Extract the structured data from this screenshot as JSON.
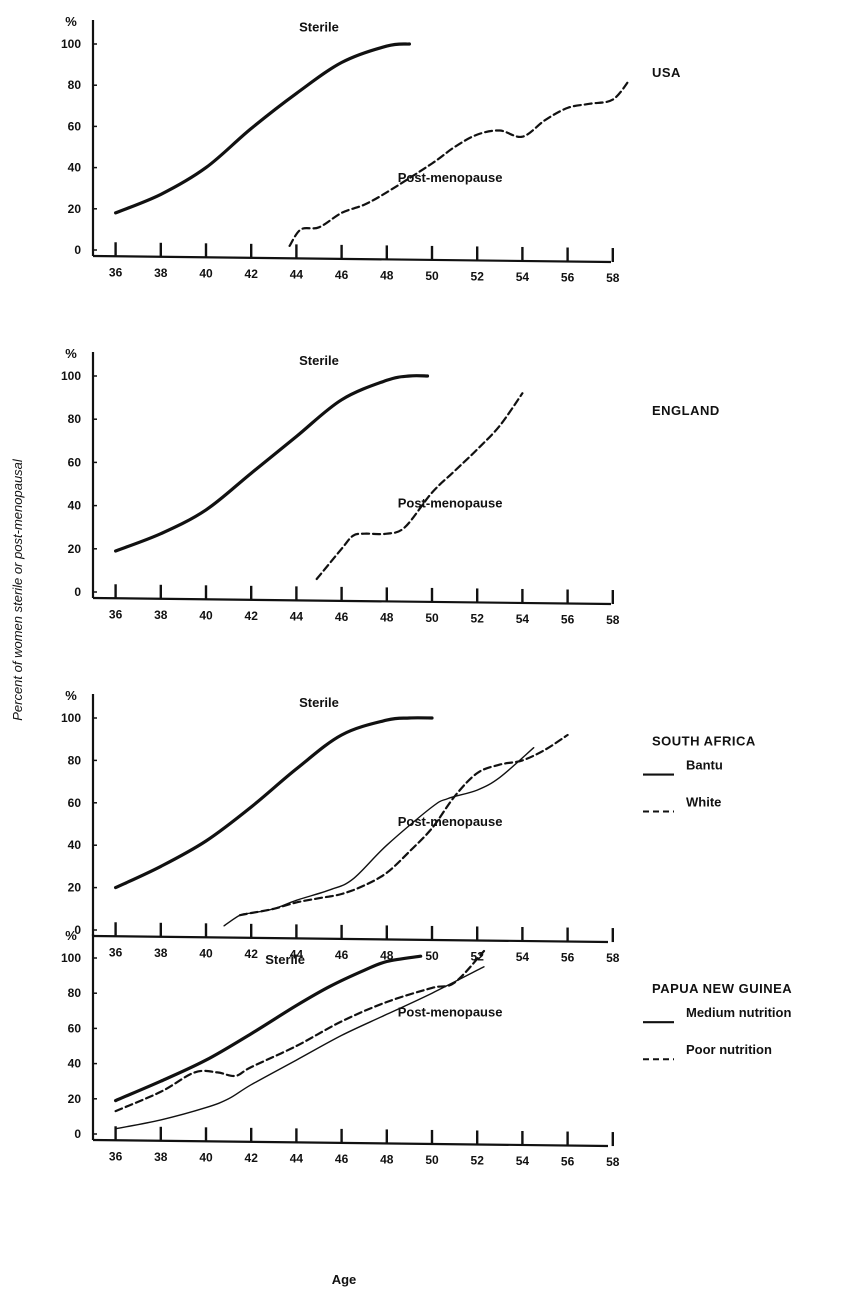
{
  "figure": {
    "ylabel": "Percent of women sterile or post-menopausal",
    "xlabel": "Age"
  },
  "chart_data": [
    {
      "type": "line",
      "title": "USA",
      "ylabel": "%",
      "xlim": [
        35,
        59
      ],
      "ylim": [
        0,
        100
      ],
      "x_ticks": [
        36,
        38,
        40,
        42,
        44,
        46,
        48,
        50,
        52,
        54,
        56,
        58
      ],
      "y_ticks": [
        0,
        20,
        40,
        60,
        80,
        100
      ],
      "series": [
        {
          "name": "Sterile",
          "style": "thick",
          "points": [
            [
              36,
              18
            ],
            [
              38,
              27
            ],
            [
              40,
              40
            ],
            [
              42,
              59
            ],
            [
              44,
              76
            ],
            [
              46,
              91
            ],
            [
              48,
              99
            ],
            [
              49,
              100
            ]
          ]
        },
        {
          "name": "Post-menopause",
          "style": "dashed",
          "points": [
            [
              43.7,
              2
            ],
            [
              44.2,
              10
            ],
            [
              45,
              11
            ],
            [
              46,
              18
            ],
            [
              47,
              22
            ],
            [
              48,
              28
            ],
            [
              50,
              42
            ],
            [
              51,
              50
            ],
            [
              52,
              56
            ],
            [
              53,
              58
            ],
            [
              54,
              55
            ],
            [
              55,
              63
            ],
            [
              56,
              69
            ],
            [
              57,
              71
            ],
            [
              58,
              73
            ],
            [
              58.7,
              82
            ]
          ]
        }
      ],
      "annotations": [
        {
          "text": "Sterile",
          "x": 45,
          "y": 108
        },
        {
          "text": "Post-menopause",
          "x": 50.8,
          "y": 35
        }
      ],
      "legend": []
    },
    {
      "type": "line",
      "title": "ENGLAND",
      "ylabel": "%",
      "xlim": [
        35,
        59
      ],
      "ylim": [
        0,
        100
      ],
      "x_ticks": [
        36,
        38,
        40,
        42,
        44,
        46,
        48,
        50,
        52,
        54,
        56,
        58
      ],
      "y_ticks": [
        0,
        20,
        40,
        60,
        80,
        100
      ],
      "series": [
        {
          "name": "Sterile",
          "style": "thick",
          "points": [
            [
              36,
              19
            ],
            [
              38,
              27
            ],
            [
              40,
              38
            ],
            [
              42,
              55
            ],
            [
              44,
              72
            ],
            [
              46,
              89
            ],
            [
              48,
              98
            ],
            [
              49,
              100
            ],
            [
              49.8,
              100
            ]
          ]
        },
        {
          "name": "Post-menopause",
          "style": "dashed",
          "points": [
            [
              44.9,
              6
            ],
            [
              46,
              20
            ],
            [
              46.5,
              26
            ],
            [
              47,
              27
            ],
            [
              48,
              27
            ],
            [
              48.8,
              30
            ],
            [
              50,
              46
            ],
            [
              51,
              56
            ],
            [
              52,
              66
            ],
            [
              53,
              77
            ],
            [
              54,
              92
            ]
          ]
        }
      ],
      "annotations": [
        {
          "text": "Sterile",
          "x": 45,
          "y": 107
        },
        {
          "text": "Post-menopause",
          "x": 50.8,
          "y": 41
        }
      ],
      "legend": []
    },
    {
      "type": "line",
      "title": "SOUTH AFRICA",
      "ylabel": "%",
      "xlim": [
        35,
        59
      ],
      "ylim": [
        0,
        100
      ],
      "x_ticks": [
        36,
        38,
        40,
        42,
        44,
        46,
        48,
        50,
        52,
        54,
        56,
        58
      ],
      "y_ticks": [
        0,
        20,
        40,
        60,
        80,
        100
      ],
      "series": [
        {
          "name": "Sterile",
          "style": "thick",
          "points": [
            [
              36,
              20
            ],
            [
              38,
              30
            ],
            [
              40,
              42
            ],
            [
              42,
              58
            ],
            [
              44,
              76
            ],
            [
              46,
              92
            ],
            [
              48,
              99
            ],
            [
              49,
              100
            ],
            [
              50,
              100
            ]
          ]
        },
        {
          "name": "Bantu",
          "style": "thin",
          "points": [
            [
              40.8,
              2
            ],
            [
              41.5,
              7
            ],
            [
              42,
              8
            ],
            [
              43,
              10
            ],
            [
              44,
              14
            ],
            [
              45.5,
              19
            ],
            [
              46.5,
              24
            ],
            [
              48,
              40
            ],
            [
              50,
              58
            ],
            [
              50.7,
              62
            ],
            [
              52,
              66
            ],
            [
              53,
              72
            ],
            [
              54.5,
              86
            ]
          ]
        },
        {
          "name": "White",
          "style": "dashed",
          "points": [
            [
              41.5,
              7
            ],
            [
              42,
              8
            ],
            [
              43,
              10
            ],
            [
              44,
              13
            ],
            [
              45,
              15
            ],
            [
              46,
              17
            ],
            [
              47,
              21
            ],
            [
              48,
              27
            ],
            [
              49,
              37
            ],
            [
              50,
              48
            ],
            [
              51,
              63
            ],
            [
              52,
              74
            ],
            [
              53,
              78
            ],
            [
              54,
              80
            ],
            [
              55,
              85
            ],
            [
              56,
              92
            ]
          ]
        }
      ],
      "annotations": [
        {
          "text": "Sterile",
          "x": 45,
          "y": 107
        },
        {
          "text": "Post-menopause",
          "x": 50.8,
          "y": 51
        }
      ],
      "legend": [
        {
          "label": "Bantu",
          "style": "solid"
        },
        {
          "label": "White",
          "style": "dashed"
        }
      ]
    },
    {
      "type": "line",
      "title": "PAPUA NEW GUINEA",
      "ylabel": "%",
      "xlim": [
        35,
        59
      ],
      "ylim": [
        0,
        100
      ],
      "x_ticks": [
        36,
        38,
        40,
        42,
        44,
        46,
        48,
        50,
        52,
        54,
        56,
        58
      ],
      "y_ticks": [
        0,
        20,
        40,
        60,
        80,
        100
      ],
      "series": [
        {
          "name": "Sterile",
          "style": "thick",
          "points": [
            [
              36,
              19
            ],
            [
              38,
              30
            ],
            [
              40,
              42
            ],
            [
              42,
              57
            ],
            [
              44,
              73
            ],
            [
              45.5,
              84
            ],
            [
              47,
              93
            ],
            [
              48,
              98
            ],
            [
              49.5,
              101
            ]
          ]
        },
        {
          "name": "Medium nutrition",
          "style": "thin",
          "points": [
            [
              36,
              3
            ],
            [
              38,
              8
            ],
            [
              40,
              15
            ],
            [
              41,
              20
            ],
            [
              42,
              28
            ],
            [
              44,
              42
            ],
            [
              46,
              56
            ],
            [
              48,
              68
            ],
            [
              50,
              80
            ],
            [
              52.3,
              95
            ]
          ]
        },
        {
          "name": "Poor nutrition",
          "style": "dashed",
          "points": [
            [
              36,
              13
            ],
            [
              38,
              24
            ],
            [
              39.5,
              35
            ],
            [
              40.5,
              35
            ],
            [
              41.3,
              33
            ],
            [
              42,
              38
            ],
            [
              44,
              50
            ],
            [
              46,
              64
            ],
            [
              48,
              75
            ],
            [
              50,
              83
            ],
            [
              51,
              86
            ],
            [
              52.3,
              104
            ]
          ]
        }
      ],
      "annotations": [
        {
          "text": "Sterile",
          "x": 43.5,
          "y": 99
        },
        {
          "text": "Post-menopause",
          "x": 50.8,
          "y": 69
        }
      ],
      "legend": [
        {
          "label": "Medium nutrition",
          "style": "solid"
        },
        {
          "label": "Poor nutrition",
          "style": "dashed"
        }
      ]
    }
  ]
}
